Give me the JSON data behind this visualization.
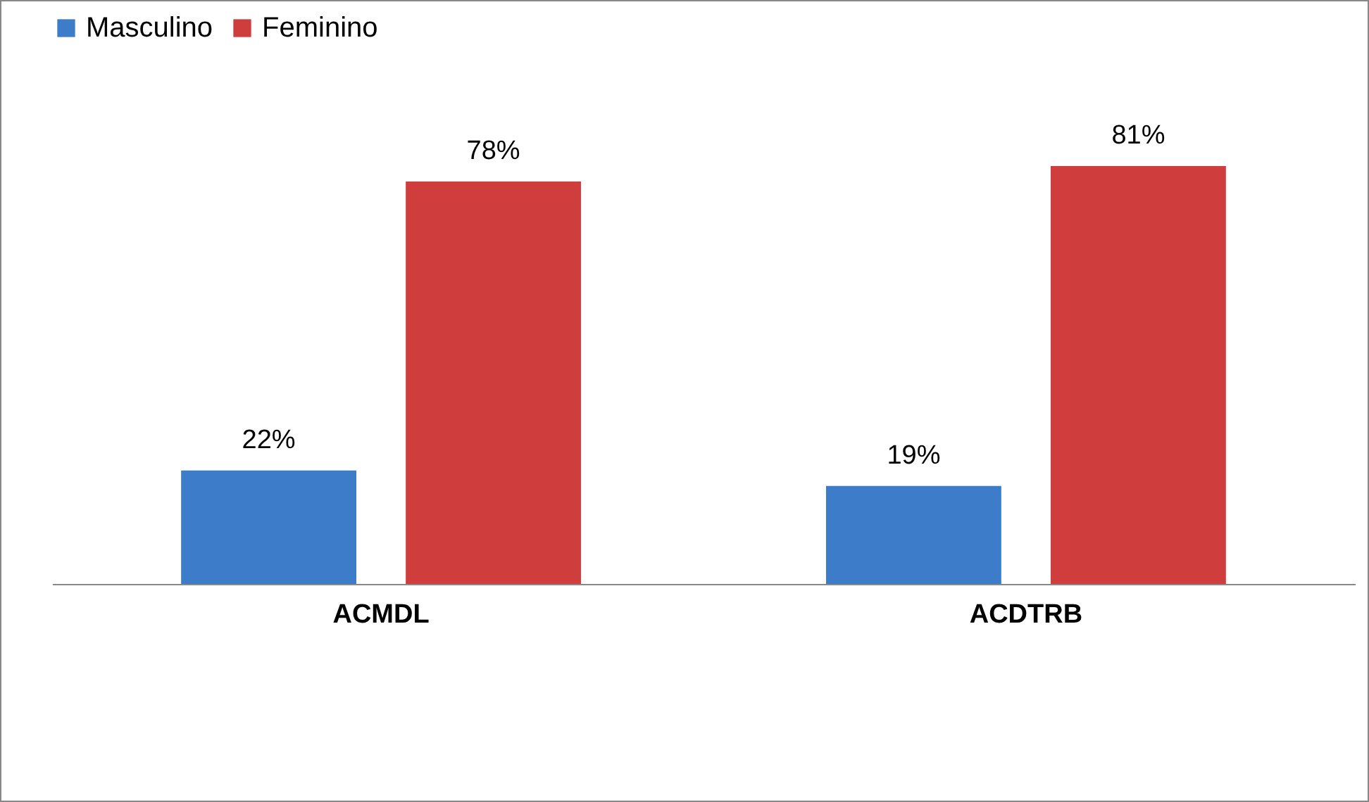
{
  "chart_data": {
    "type": "bar",
    "categories": [
      "ACMDL",
      "ACDTRB"
    ],
    "series": [
      {
        "name": "Masculino",
        "color": "#3d7cc9",
        "values": [
          22,
          19
        ],
        "value_labels": [
          "22%",
          "19%"
        ]
      },
      {
        "name": "Feminino",
        "color": "#cf3d3d",
        "values": [
          78,
          81
        ],
        "value_labels": [
          "78%",
          "81%"
        ]
      }
    ],
    "legend": "top",
    "grid": false
  }
}
